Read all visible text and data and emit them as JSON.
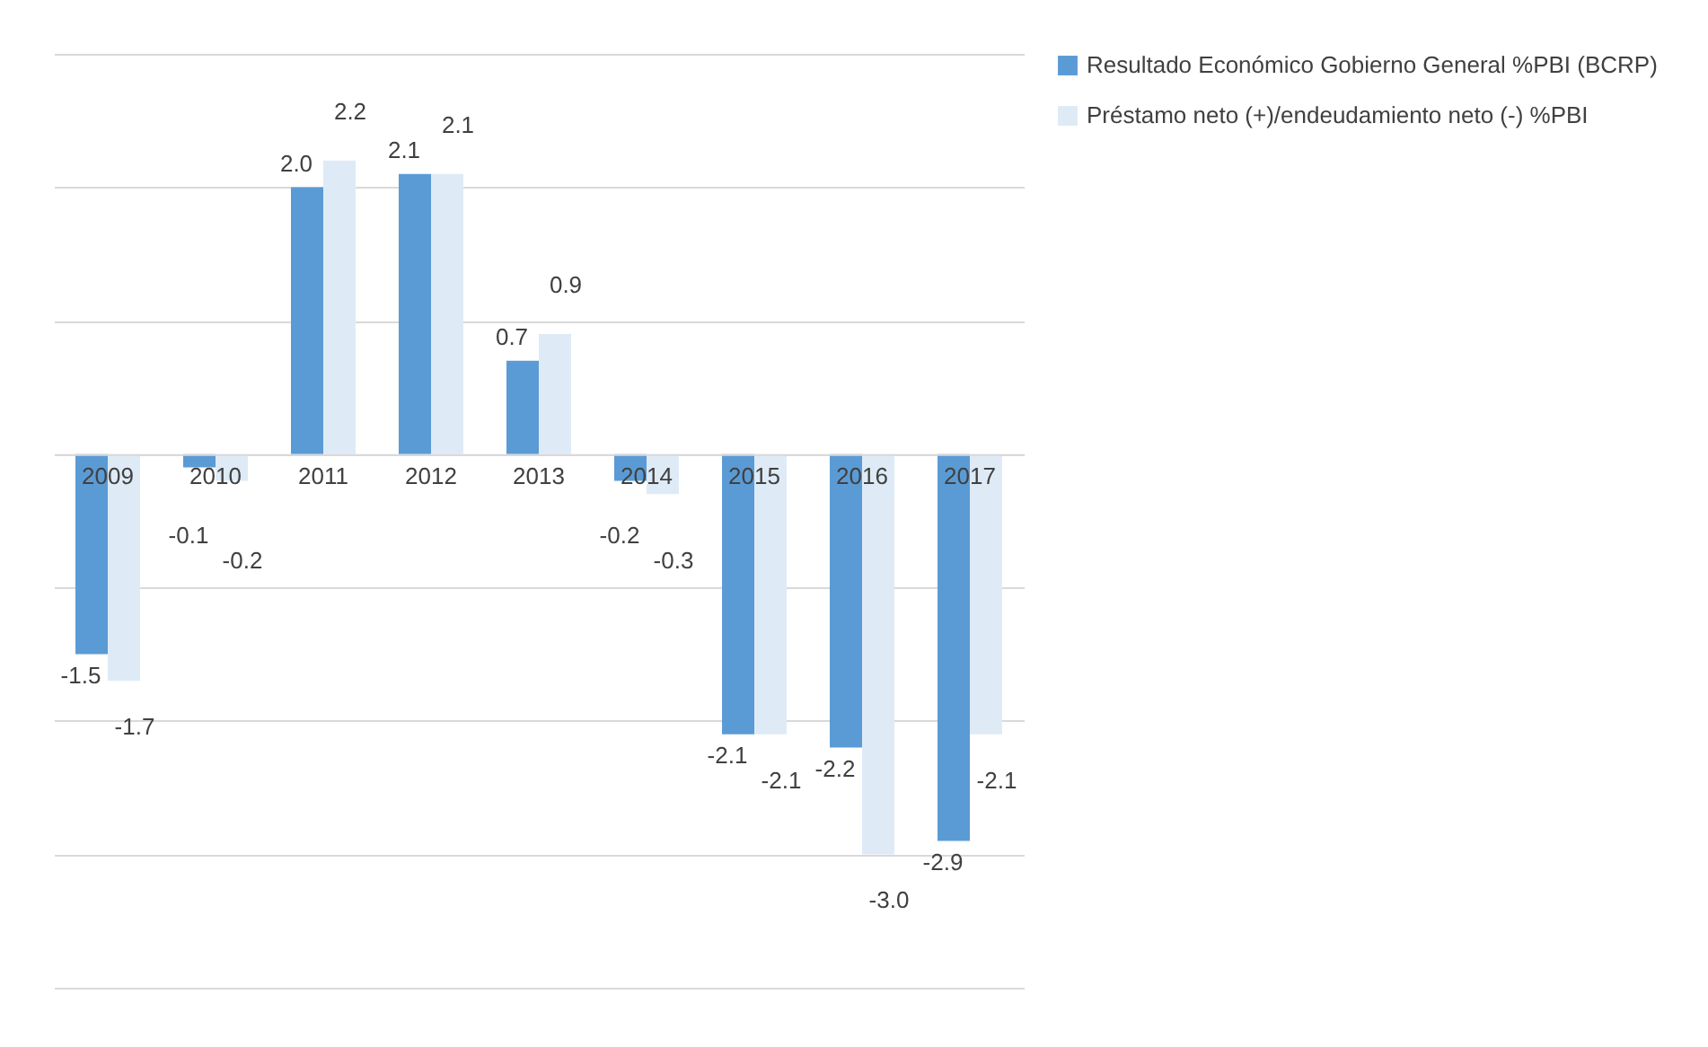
{
  "chart_data": {
    "type": "bar",
    "categories": [
      "2009",
      "2010",
      "2011",
      "2012",
      "2013",
      "2014",
      "2015",
      "2016",
      "2017"
    ],
    "series": [
      {
        "name": "Resultado Económico Gobierno General %PBI (BCRP)",
        "color": "#5b9bd5",
        "values": [
          -1.5,
          -0.1,
          2.0,
          2.1,
          0.7,
          -0.2,
          -2.1,
          -2.2,
          -2.9
        ],
        "value_labels": [
          "-1.5",
          "-0.1",
          "2.0",
          "2.1",
          "0.7",
          "-0.2",
          "-2.1",
          "-2.2",
          "-2.9"
        ]
      },
      {
        "name": "Préstamo neto (+)/endeudamiento neto (-) %PBI",
        "color": "#deebf7",
        "values": [
          -1.7,
          -0.2,
          2.2,
          2.1,
          0.9,
          -0.3,
          -2.1,
          -3.0,
          -2.1
        ],
        "value_labels": [
          "-1.7",
          "-0.2",
          "2.2",
          "2.1",
          "0.9",
          "-0.3",
          "-2.1",
          "-3.0",
          "-2.1"
        ]
      }
    ],
    "ylim": [
      -4,
      3
    ],
    "yticks": [
      -4,
      -3,
      -2,
      -1,
      0,
      1,
      2,
      3
    ],
    "grid": "y",
    "tick_labels": "x",
    "legend": "right"
  }
}
